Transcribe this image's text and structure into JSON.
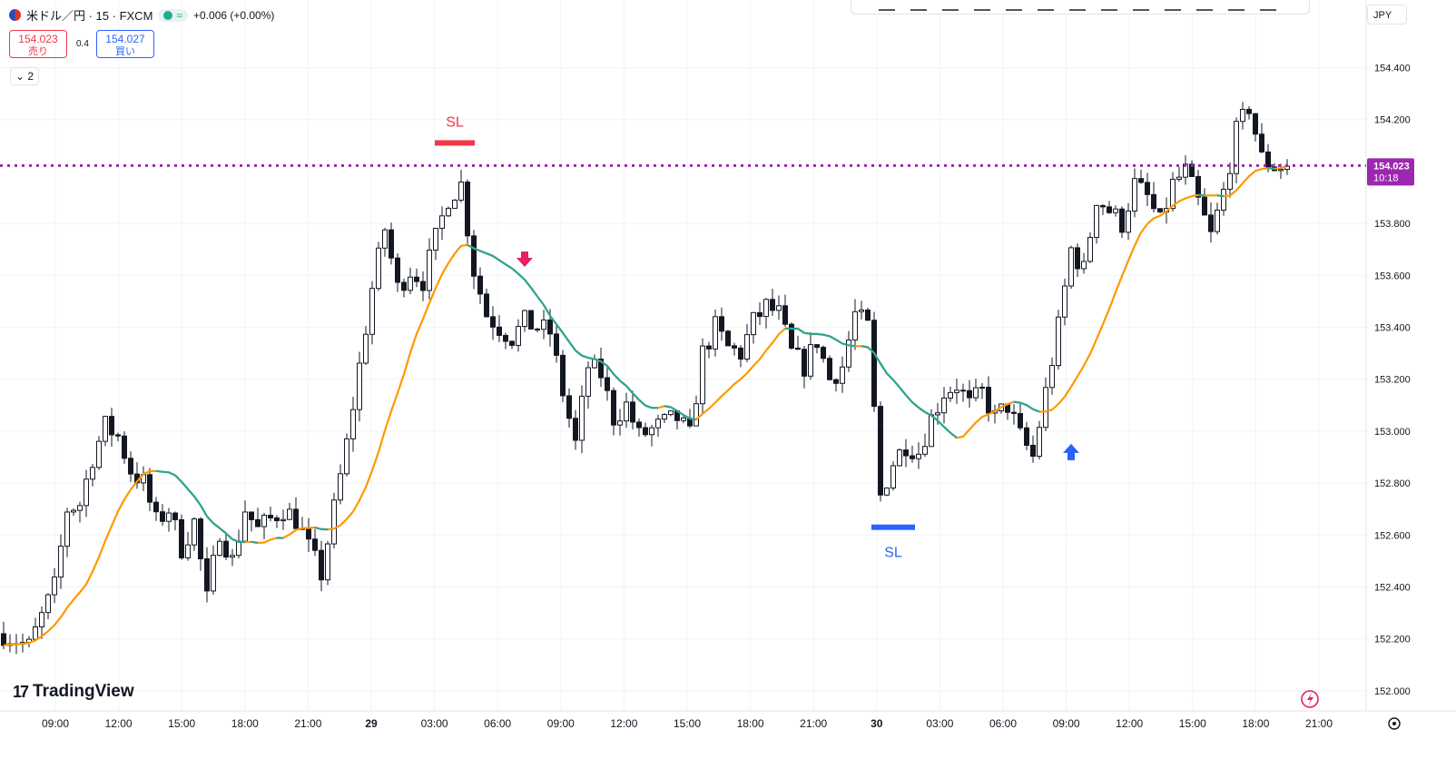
{
  "header": {
    "symbol": "米ドル／円 · 15 · FXCM",
    "pill_symbol": "≈",
    "change": "+0.006 (+0.00%)",
    "sell_price": "154.023",
    "sell_label": "売り",
    "spread": "0.4",
    "buy_price": "154.027",
    "buy_label": "買い",
    "indicator_count": "2",
    "currency": "JPY"
  },
  "branding": {
    "logo_text": "TradingView",
    "logo_mark": "17"
  },
  "chart_data": {
    "type": "candlestick",
    "symbol": "USDJPY",
    "timeframe": "15",
    "ylim": [
      152.05,
      154.55
    ],
    "y_ticks": [
      "154.400",
      "154.200",
      "153.800",
      "153.600",
      "153.400",
      "153.200",
      "153.000",
      "152.800",
      "152.600",
      "152.400",
      "152.200",
      "152.000"
    ],
    "x_ticks": [
      "09:00",
      "12:00",
      "15:00",
      "18:00",
      "21:00",
      "29",
      "03:00",
      "06:00",
      "09:00",
      "12:00",
      "15:00",
      "18:00",
      "21:00",
      "30",
      "03:00",
      "06:00",
      "09:00",
      "12:00",
      "15:00",
      "18:00",
      "21:00"
    ],
    "current_price": 154.023,
    "current_price_label": "154.023",
    "countdown": "10:18",
    "price_line_color": "#9c27b0",
    "ma_colors": {
      "up": "#ff9800",
      "down": "#26a69a",
      "transition": "#f23645"
    },
    "annotations": [
      {
        "type": "stop-loss",
        "text": "SL",
        "price": 154.11,
        "color": "#f23645",
        "x_label": "03:00 (29)"
      },
      {
        "type": "stop-loss",
        "text": "SL",
        "price": 152.63,
        "color": "#2962ff",
        "x_label": "00:00 (30)"
      },
      {
        "type": "sell-arrow",
        "price": 153.65,
        "color": "#e91e63"
      },
      {
        "type": "buy-arrow",
        "price": 152.93,
        "color": "#2962ff"
      }
    ],
    "price_path": [
      [
        0,
        152.22
      ],
      [
        4,
        152.17
      ],
      [
        8,
        152.4
      ],
      [
        10,
        152.7
      ],
      [
        12,
        152.72
      ],
      [
        14,
        152.9
      ],
      [
        16,
        153.02
      ],
      [
        18,
        152.98
      ],
      [
        20,
        152.85
      ],
      [
        22,
        152.8
      ],
      [
        24,
        152.65
      ],
      [
        26,
        152.7
      ],
      [
        28,
        152.55
      ],
      [
        30,
        152.65
      ],
      [
        32,
        152.35
      ],
      [
        34,
        152.62
      ],
      [
        36,
        152.5
      ],
      [
        38,
        152.7
      ],
      [
        40,
        152.62
      ],
      [
        44,
        152.7
      ],
      [
        46,
        152.66
      ],
      [
        48,
        152.55
      ],
      [
        50,
        152.45
      ],
      [
        54,
        152.95
      ],
      [
        58,
        153.55
      ],
      [
        60,
        153.78
      ],
      [
        62,
        153.55
      ],
      [
        64,
        153.62
      ],
      [
        66,
        153.58
      ],
      [
        70,
        153.9
      ],
      [
        72,
        153.95
      ],
      [
        74,
        153.62
      ],
      [
        76,
        153.45
      ],
      [
        78,
        153.4
      ],
      [
        80,
        153.36
      ],
      [
        82,
        153.42
      ],
      [
        86,
        153.38
      ],
      [
        88,
        153.15
      ],
      [
        90,
        152.95
      ],
      [
        92,
        153.25
      ],
      [
        94,
        153.22
      ],
      [
        96,
        153.05
      ],
      [
        98,
        153.1
      ],
      [
        100,
        152.98
      ],
      [
        104,
        153.03
      ],
      [
        106,
        153.05
      ],
      [
        108,
        152.98
      ],
      [
        110,
        153.3
      ],
      [
        112,
        153.4
      ],
      [
        114,
        153.32
      ],
      [
        116,
        153.3
      ],
      [
        118,
        153.42
      ],
      [
        120,
        153.48
      ],
      [
        122,
        153.45
      ],
      [
        124,
        153.3
      ],
      [
        126,
        153.25
      ],
      [
        128,
        153.35
      ],
      [
        130,
        153.2
      ],
      [
        132,
        153.25
      ],
      [
        134,
        153.45
      ],
      [
        136,
        153.4
      ],
      [
        138,
        152.75
      ],
      [
        140,
        152.88
      ],
      [
        142,
        152.95
      ],
      [
        144,
        152.92
      ],
      [
        146,
        153.05
      ],
      [
        148,
        153.15
      ],
      [
        150,
        153.18
      ],
      [
        152,
        153.1
      ],
      [
        154,
        153.15
      ],
      [
        156,
        153.05
      ],
      [
        158,
        153.1
      ],
      [
        160,
        152.98
      ],
      [
        162,
        152.9
      ],
      [
        164,
        153.15
      ],
      [
        166,
        153.4
      ],
      [
        168,
        153.7
      ],
      [
        170,
        153.62
      ],
      [
        172,
        153.9
      ],
      [
        174,
        153.85
      ],
      [
        176,
        153.8
      ],
      [
        178,
        153.95
      ],
      [
        180,
        153.9
      ],
      [
        182,
        153.8
      ],
      [
        184,
        153.95
      ],
      [
        186,
        154.0
      ],
      [
        188,
        153.88
      ],
      [
        190,
        153.75
      ],
      [
        192,
        153.92
      ],
      [
        194,
        154.15
      ],
      [
        196,
        154.25
      ],
      [
        198,
        154.05
      ],
      [
        200,
        154.02
      ],
      [
        202,
        154.02
      ]
    ],
    "sl_top_price": 154.11,
    "sl_bottom_price": 152.63
  }
}
